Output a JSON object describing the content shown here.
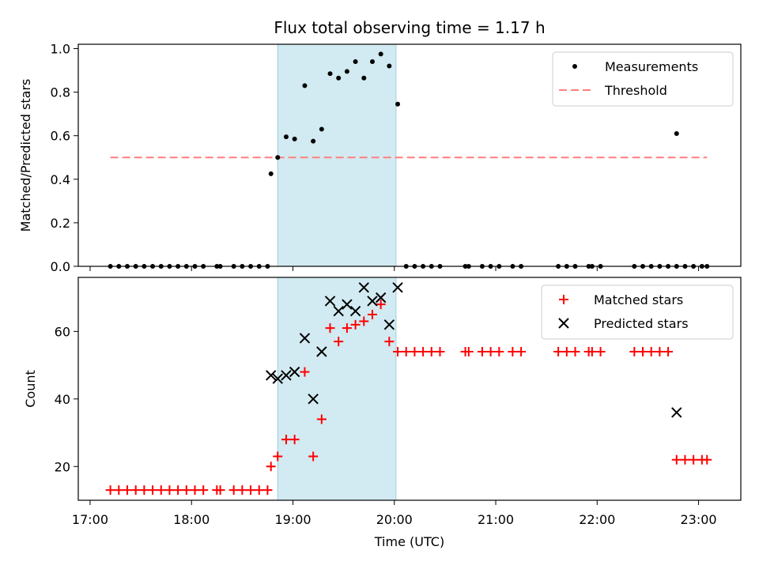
{
  "figure": {
    "title": "Flux total observing time = 1.17 h",
    "shaded_window": {
      "start": "18:51",
      "end": "20:01",
      "color": "#add8e6"
    }
  },
  "chart_data": [
    {
      "type": "scatter",
      "name": "top",
      "xlabel": "",
      "ylabel": "Matched/Predicted stars",
      "ylim": [
        0,
        1.02
      ],
      "yticks": [
        "0.0",
        "0.2",
        "0.4",
        "0.6",
        "0.8",
        "1.0"
      ],
      "xlim": [
        "16:53",
        "23:25"
      ],
      "xtick_labels_visible": false,
      "legend": {
        "placement": "top-right",
        "entries": [
          "Measurements",
          "Threshold"
        ]
      },
      "threshold": {
        "name": "Threshold",
        "value": 0.5,
        "x_range": [
          "17:12",
          "23:05"
        ],
        "color": "#ff7f7f",
        "style": "dashed"
      },
      "series": [
        {
          "name": "Measurements",
          "marker": "dot",
          "color": "#000000",
          "points": [
            [
              "17:12",
              0
            ],
            [
              "17:17",
              0
            ],
            [
              "17:22",
              0
            ],
            [
              "17:27",
              0
            ],
            [
              "17:32",
              0
            ],
            [
              "17:37",
              0
            ],
            [
              "17:42",
              0
            ],
            [
              "17:47",
              0
            ],
            [
              "17:52",
              0
            ],
            [
              "17:57",
              0
            ],
            [
              "18:02",
              0
            ],
            [
              "18:07",
              0
            ],
            [
              "18:15",
              0
            ],
            [
              "18:17",
              0
            ],
            [
              "18:25",
              0
            ],
            [
              "18:30",
              0
            ],
            [
              "18:35",
              0
            ],
            [
              "18:40",
              0
            ],
            [
              "18:45",
              0
            ],
            [
              "18:47",
              0.425
            ],
            [
              "18:51",
              0.5
            ],
            [
              "18:56",
              0.595
            ],
            [
              "19:01",
              0.585
            ],
            [
              "19:07",
              0.83
            ],
            [
              "19:12",
              0.575
            ],
            [
              "19:17",
              0.63
            ],
            [
              "19:22",
              0.885
            ],
            [
              "19:27",
              0.865
            ],
            [
              "19:32",
              0.895
            ],
            [
              "19:37",
              0.94
            ],
            [
              "19:42",
              0.865
            ],
            [
              "19:47",
              0.94
            ],
            [
              "19:52",
              0.975
            ],
            [
              "19:57",
              0.92
            ],
            [
              "20:02",
              0.745
            ],
            [
              "20:07",
              0
            ],
            [
              "20:12",
              0
            ],
            [
              "20:17",
              0
            ],
            [
              "20:22",
              0
            ],
            [
              "20:27",
              0
            ],
            [
              "20:42",
              0
            ],
            [
              "20:44",
              0
            ],
            [
              "20:52",
              0
            ],
            [
              "20:57",
              0
            ],
            [
              "21:02",
              0
            ],
            [
              "21:10",
              0
            ],
            [
              "21:15",
              0
            ],
            [
              "21:37",
              0
            ],
            [
              "21:42",
              0
            ],
            [
              "21:47",
              0
            ],
            [
              "21:55",
              0
            ],
            [
              "21:57",
              0
            ],
            [
              "22:02",
              0
            ],
            [
              "22:22",
              0
            ],
            [
              "22:27",
              0
            ],
            [
              "22:32",
              0
            ],
            [
              "22:37",
              0
            ],
            [
              "22:42",
              0
            ],
            [
              "22:47",
              0
            ],
            [
              "22:47",
              0.61
            ],
            [
              "22:52",
              0
            ],
            [
              "22:57",
              0
            ],
            [
              "23:02",
              0
            ],
            [
              "23:05",
              0
            ]
          ]
        }
      ]
    },
    {
      "type": "scatter",
      "name": "bottom",
      "xlabel": "Time (UTC)",
      "ylabel": "Count",
      "ylim": [
        10,
        76
      ],
      "yticks": [
        "20",
        "40",
        "60"
      ],
      "xlim": [
        "16:53",
        "23:25"
      ],
      "xticks": [
        "17:00",
        "18:00",
        "19:00",
        "20:00",
        "21:00",
        "22:00",
        "23:00"
      ],
      "legend": {
        "placement": "top-right",
        "entries": [
          "Matched stars",
          "Predicted stars"
        ]
      },
      "series": [
        {
          "name": "Matched stars",
          "marker": "plus",
          "color": "#ff0000",
          "points": [
            [
              "17:12",
              13
            ],
            [
              "17:17",
              13
            ],
            [
              "17:22",
              13
            ],
            [
              "17:27",
              13
            ],
            [
              "17:32",
              13
            ],
            [
              "17:37",
              13
            ],
            [
              "17:42",
              13
            ],
            [
              "17:47",
              13
            ],
            [
              "17:52",
              13
            ],
            [
              "17:57",
              13
            ],
            [
              "18:02",
              13
            ],
            [
              "18:07",
              13
            ],
            [
              "18:15",
              13
            ],
            [
              "18:17",
              13
            ],
            [
              "18:25",
              13
            ],
            [
              "18:30",
              13
            ],
            [
              "18:35",
              13
            ],
            [
              "18:40",
              13
            ],
            [
              "18:45",
              13
            ],
            [
              "18:47",
              20
            ],
            [
              "18:51",
              23
            ],
            [
              "18:56",
              28
            ],
            [
              "19:01",
              28
            ],
            [
              "19:07",
              48
            ],
            [
              "19:12",
              23
            ],
            [
              "19:17",
              34
            ],
            [
              "19:22",
              61
            ],
            [
              "19:27",
              57
            ],
            [
              "19:32",
              61
            ],
            [
              "19:37",
              62
            ],
            [
              "19:42",
              63
            ],
            [
              "19:47",
              65
            ],
            [
              "19:52",
              68
            ],
            [
              "19:57",
              57
            ],
            [
              "20:02",
              54
            ],
            [
              "20:07",
              54
            ],
            [
              "20:12",
              54
            ],
            [
              "20:17",
              54
            ],
            [
              "20:22",
              54
            ],
            [
              "20:27",
              54
            ],
            [
              "20:42",
              54
            ],
            [
              "20:44",
              54
            ],
            [
              "20:52",
              54
            ],
            [
              "20:57",
              54
            ],
            [
              "21:02",
              54
            ],
            [
              "21:10",
              54
            ],
            [
              "21:15",
              54
            ],
            [
              "21:37",
              54
            ],
            [
              "21:42",
              54
            ],
            [
              "21:47",
              54
            ],
            [
              "21:55",
              54
            ],
            [
              "21:57",
              54
            ],
            [
              "22:02",
              54
            ],
            [
              "22:22",
              54
            ],
            [
              "22:27",
              54
            ],
            [
              "22:32",
              54
            ],
            [
              "22:37",
              54
            ],
            [
              "22:42",
              54
            ],
            [
              "22:47",
              22
            ],
            [
              "22:52",
              22
            ],
            [
              "22:57",
              22
            ],
            [
              "23:02",
              22
            ],
            [
              "23:05",
              22
            ]
          ]
        },
        {
          "name": "Predicted stars",
          "marker": "x",
          "color": "#000000",
          "points": [
            [
              "18:47",
              47
            ],
            [
              "18:51",
              46
            ],
            [
              "18:56",
              47
            ],
            [
              "19:01",
              48
            ],
            [
              "19:07",
              58
            ],
            [
              "19:12",
              40
            ],
            [
              "19:17",
              54
            ],
            [
              "19:22",
              69
            ],
            [
              "19:27",
              66
            ],
            [
              "19:32",
              68
            ],
            [
              "19:37",
              66
            ],
            [
              "19:42",
              73
            ],
            [
              "19:47",
              69
            ],
            [
              "19:52",
              70
            ],
            [
              "19:57",
              62
            ],
            [
              "20:02",
              73
            ],
            [
              "22:47",
              36
            ]
          ]
        }
      ]
    }
  ]
}
